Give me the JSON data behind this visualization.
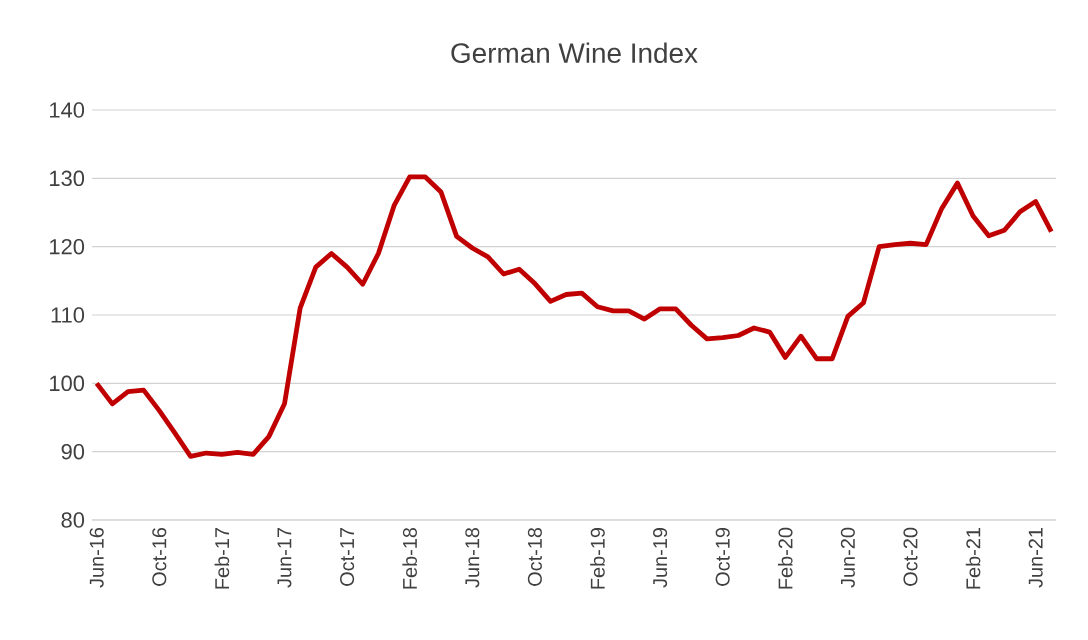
{
  "chart_data": {
    "type": "line",
    "title": "German Wine Index",
    "categories": [
      "Jun-16",
      null,
      null,
      null,
      "Oct-16",
      null,
      null,
      null,
      "Feb-17",
      null,
      null,
      null,
      "Jun-17",
      null,
      null,
      null,
      "Oct-17",
      null,
      null,
      null,
      "Feb-18",
      null,
      null,
      null,
      "Jun-18",
      null,
      null,
      null,
      "Oct-18",
      null,
      null,
      null,
      "Feb-19",
      null,
      null,
      null,
      "Jun-19",
      null,
      null,
      null,
      "Oct-19",
      null,
      null,
      null,
      "Feb-20",
      null,
      null,
      null,
      "Jun-20",
      null,
      null,
      null,
      "Oct-20",
      null,
      null,
      null,
      "Feb-21",
      null,
      null,
      null,
      "Jun-21",
      null
    ],
    "values": [
      100,
      97,
      98.8,
      99,
      96,
      92.7,
      89.3,
      89.8,
      89.6,
      89.9,
      89.6,
      92.2,
      97,
      111,
      117,
      119,
      117,
      114.5,
      119,
      126,
      130.2,
      130.2,
      128,
      121.5,
      119.8,
      118.5,
      116,
      116.7,
      114.6,
      112,
      113,
      113.2,
      111.2,
      110.6,
      110.6,
      109.4,
      110.9,
      110.9,
      108.5,
      106.5,
      106.7,
      107,
      108.1,
      107.5,
      103.8,
      106.9,
      103.6,
      103.6,
      109.8,
      111.8,
      120,
      120.3,
      120.5,
      120.3,
      125.6,
      129.3,
      124.5,
      121.6,
      122.4,
      125.1,
      126.6,
      122.2
    ],
    "color": "#c00000",
    "ylim": [
      80,
      140
    ],
    "yticks": [
      80,
      90,
      100,
      110,
      120,
      130,
      140
    ],
    "grid": "y",
    "marker": "none",
    "line_style": "solid"
  }
}
